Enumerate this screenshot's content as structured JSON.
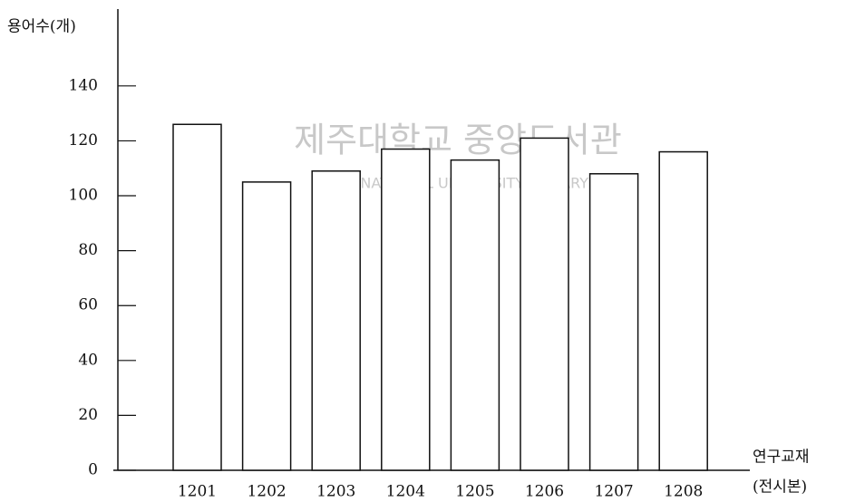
{
  "chart_data": {
    "type": "bar",
    "ylabel": "용어수(개)",
    "xlabel": "연구교재",
    "xlabel_note": "(전시본)",
    "watermark": [
      "제주대학교 중앙도서관",
      "JEJU NATIONAL UNIVERSITY LIBRARY"
    ],
    "categories": [
      "1201",
      "1202",
      "1203",
      "1204",
      "1205",
      "1206",
      "1207",
      "1208"
    ],
    "values": [
      126,
      105,
      109,
      117,
      113,
      121,
      108,
      116
    ],
    "color": "#ffffff",
    "ylim": [
      0,
      168
    ],
    "yticks": [
      0,
      20,
      40,
      60,
      80,
      100,
      120,
      140
    ],
    "grid": false
  }
}
